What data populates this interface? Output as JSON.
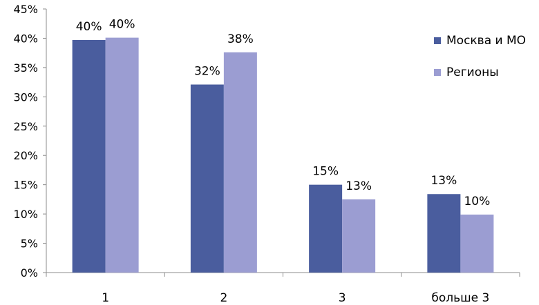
{
  "chart_data": {
    "type": "bar",
    "categories": [
      "1",
      "2",
      "3",
      "больше 3"
    ],
    "series": [
      {
        "name": "Москва и МО",
        "values": [
          39.7,
          32.1,
          15.0,
          13.4
        ],
        "labels": [
          "40%",
          "32%",
          "15%",
          "13%"
        ],
        "color": "#4a5d9e"
      },
      {
        "name": "Регионы",
        "values": [
          40.1,
          37.6,
          12.5,
          9.9
        ],
        "labels": [
          "40%",
          "38%",
          "13%",
          "10%"
        ],
        "color": "#9b9dd2"
      }
    ],
    "y_ticks": [
      "0%",
      "5%",
      "10%",
      "15%",
      "20%",
      "25%",
      "30%",
      "35%",
      "40%",
      "45%"
    ],
    "ylim": [
      0,
      45
    ],
    "y_unit": "%",
    "grid": false,
    "legend_position": "right"
  }
}
